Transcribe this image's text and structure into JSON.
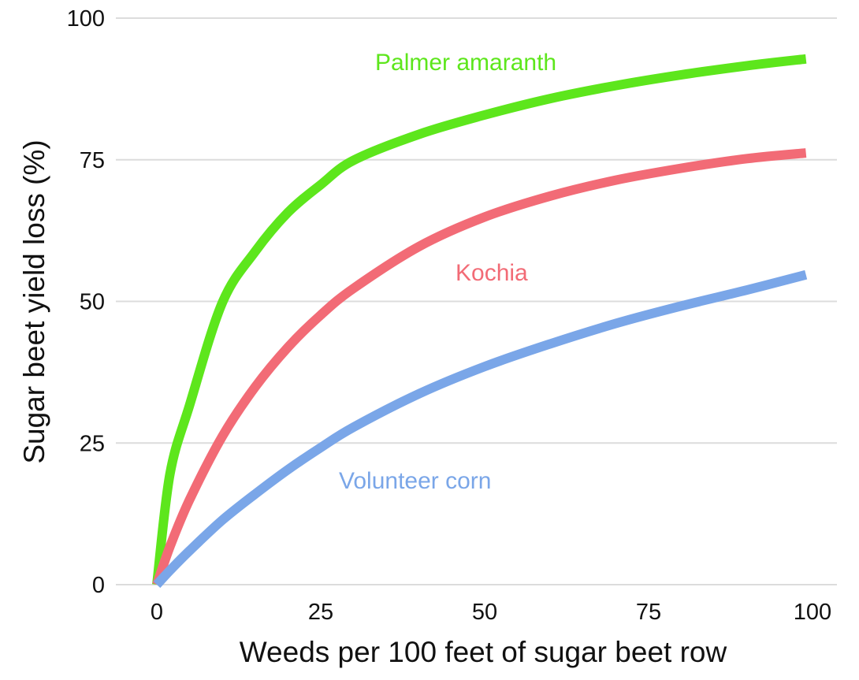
{
  "chart_data": {
    "type": "line",
    "title": "",
    "xlabel": "Weeds per 100 feet of sugar beet row",
    "ylabel": "Sugar beet yield loss (%)",
    "xlim": [
      0,
      100
    ],
    "ylim": [
      0,
      100
    ],
    "x_ticks": [
      0,
      25,
      50,
      75,
      100
    ],
    "x_tick_labels": [
      "0",
      "25",
      "50",
      "75",
      "100"
    ],
    "y_ticks": [
      0,
      25,
      50,
      75,
      100
    ],
    "y_tick_labels": [
      "0",
      "25",
      "50",
      "75",
      "100"
    ],
    "grid": "horizontal",
    "x": [
      0,
      2,
      5,
      10,
      15,
      20,
      25,
      30,
      40,
      50,
      60,
      70,
      80,
      90,
      99
    ],
    "series": [
      {
        "name": "Palmer amaranth",
        "label": "Palmer amaranth",
        "color": "#5de61c",
        "values": [
          0,
          19.5,
          31.7,
          49.8,
          58.8,
          65.7,
          70.6,
          74.9,
          79.5,
          82.9,
          85.8,
          88.1,
          90.0,
          91.6,
          92.8
        ]
      },
      {
        "name": "Kochia",
        "label": "Kochia",
        "color": "#f26b76",
        "values": [
          0,
          6.7,
          15.0,
          26.2,
          34.9,
          41.9,
          47.6,
          52.3,
          59.7,
          64.9,
          68.6,
          71.4,
          73.5,
          75.2,
          76.2
        ]
      },
      {
        "name": "Volunteer corn",
        "label": "Volunteer corn",
        "color": "#7aa6e8",
        "values": [
          0,
          2.5,
          6.0,
          11.4,
          16.0,
          20.3,
          24.2,
          27.8,
          33.7,
          38.5,
          42.5,
          46.1,
          49.2,
          52.0,
          54.7
        ]
      }
    ],
    "annotations": [
      {
        "text": "Palmer amaranth",
        "series": "Palmer amaranth"
      },
      {
        "text": "Kochia",
        "series": "Kochia"
      },
      {
        "text": "Volunteer corn",
        "series": "Volunteer corn"
      }
    ]
  }
}
